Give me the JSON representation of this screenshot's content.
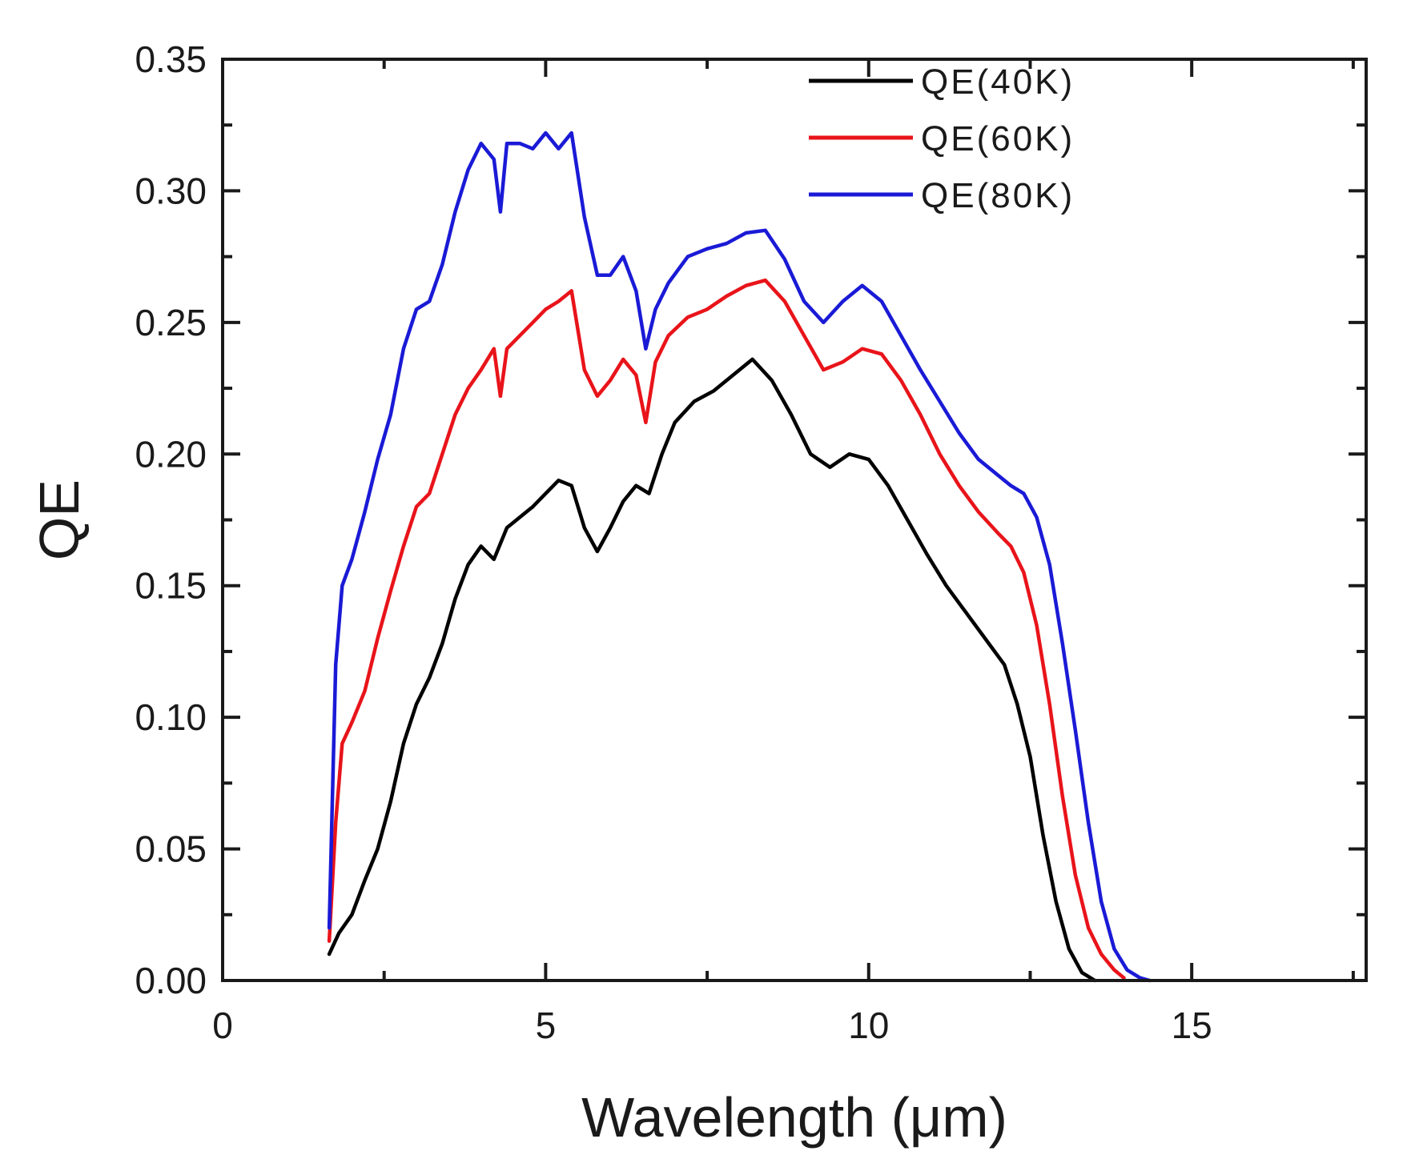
{
  "chart_data": {
    "type": "line",
    "title": "",
    "xlabel": "Wavelength (μm)",
    "ylabel": "QE",
    "xlim": [
      0,
      17.7
    ],
    "ylim": [
      0,
      0.35
    ],
    "xticks": [
      0,
      5,
      10,
      15
    ],
    "xtick_labels": [
      "0",
      "5",
      "10",
      "15"
    ],
    "yticks": [
      0,
      0.05,
      0.1,
      0.15,
      0.2,
      0.25,
      0.3,
      0.35
    ],
    "ytick_labels": [
      "0.00",
      "0.05",
      "0.10",
      "0.15",
      "0.20",
      "0.25",
      "0.30",
      "0.35"
    ],
    "grid": false,
    "legend_position": "top-right",
    "series": [
      {
        "name": "QE(40K)",
        "color": "#000000",
        "x": [
          1.65,
          1.8,
          2.0,
          2.2,
          2.4,
          2.6,
          2.8,
          3.0,
          3.2,
          3.4,
          3.6,
          3.8,
          4.0,
          4.2,
          4.4,
          4.6,
          4.8,
          5.0,
          5.2,
          5.4,
          5.6,
          5.8,
          6.0,
          6.2,
          6.4,
          6.6,
          6.8,
          7.0,
          7.3,
          7.6,
          7.9,
          8.2,
          8.5,
          8.8,
          9.1,
          9.4,
          9.7,
          10.0,
          10.3,
          10.6,
          10.9,
          11.2,
          11.5,
          11.8,
          12.1,
          12.3,
          12.5,
          12.7,
          12.9,
          13.1,
          13.3,
          13.5
        ],
        "values": [
          0.01,
          0.018,
          0.025,
          0.038,
          0.05,
          0.068,
          0.09,
          0.105,
          0.115,
          0.128,
          0.145,
          0.158,
          0.165,
          0.16,
          0.172,
          0.176,
          0.18,
          0.185,
          0.19,
          0.188,
          0.172,
          0.163,
          0.172,
          0.182,
          0.188,
          0.185,
          0.2,
          0.212,
          0.22,
          0.224,
          0.23,
          0.236,
          0.228,
          0.215,
          0.2,
          0.195,
          0.2,
          0.198,
          0.188,
          0.175,
          0.162,
          0.15,
          0.14,
          0.13,
          0.12,
          0.105,
          0.085,
          0.055,
          0.03,
          0.012,
          0.003,
          0.0
        ]
      },
      {
        "name": "QE(60K)",
        "color": "#e8141a",
        "x": [
          1.65,
          1.75,
          1.85,
          2.0,
          2.2,
          2.4,
          2.6,
          2.8,
          3.0,
          3.2,
          3.4,
          3.6,
          3.8,
          4.0,
          4.2,
          4.3,
          4.4,
          4.6,
          4.8,
          5.0,
          5.2,
          5.4,
          5.6,
          5.8,
          6.0,
          6.2,
          6.4,
          6.55,
          6.7,
          6.9,
          7.2,
          7.5,
          7.8,
          8.1,
          8.4,
          8.7,
          9.0,
          9.3,
          9.6,
          9.9,
          10.2,
          10.5,
          10.8,
          11.1,
          11.4,
          11.7,
          12.0,
          12.2,
          12.4,
          12.6,
          12.8,
          13.0,
          13.2,
          13.4,
          13.6,
          13.8,
          13.95
        ],
        "values": [
          0.015,
          0.06,
          0.09,
          0.098,
          0.11,
          0.13,
          0.148,
          0.165,
          0.18,
          0.185,
          0.2,
          0.215,
          0.225,
          0.232,
          0.24,
          0.222,
          0.24,
          0.245,
          0.25,
          0.255,
          0.258,
          0.262,
          0.232,
          0.222,
          0.228,
          0.236,
          0.23,
          0.212,
          0.235,
          0.245,
          0.252,
          0.255,
          0.26,
          0.264,
          0.266,
          0.258,
          0.245,
          0.232,
          0.235,
          0.24,
          0.238,
          0.228,
          0.215,
          0.2,
          0.188,
          0.178,
          0.17,
          0.165,
          0.155,
          0.135,
          0.105,
          0.07,
          0.04,
          0.02,
          0.01,
          0.004,
          0.001
        ]
      },
      {
        "name": "QE(80K)",
        "color": "#1a1ad6",
        "x": [
          1.65,
          1.75,
          1.85,
          2.0,
          2.2,
          2.4,
          2.6,
          2.8,
          3.0,
          3.2,
          3.4,
          3.6,
          3.8,
          4.0,
          4.2,
          4.3,
          4.4,
          4.6,
          4.8,
          5.0,
          5.2,
          5.4,
          5.6,
          5.8,
          6.0,
          6.2,
          6.4,
          6.55,
          6.7,
          6.9,
          7.2,
          7.5,
          7.8,
          8.1,
          8.4,
          8.7,
          9.0,
          9.3,
          9.6,
          9.9,
          10.2,
          10.5,
          10.8,
          11.1,
          11.4,
          11.7,
          12.0,
          12.2,
          12.4,
          12.6,
          12.8,
          13.0,
          13.2,
          13.4,
          13.6,
          13.8,
          14.0,
          14.2,
          14.35
        ],
        "values": [
          0.02,
          0.12,
          0.15,
          0.16,
          0.178,
          0.198,
          0.215,
          0.24,
          0.255,
          0.258,
          0.272,
          0.292,
          0.308,
          0.318,
          0.312,
          0.292,
          0.318,
          0.318,
          0.316,
          0.322,
          0.316,
          0.322,
          0.29,
          0.268,
          0.268,
          0.275,
          0.262,
          0.24,
          0.255,
          0.265,
          0.275,
          0.278,
          0.28,
          0.284,
          0.285,
          0.274,
          0.258,
          0.25,
          0.258,
          0.264,
          0.258,
          0.245,
          0.232,
          0.22,
          0.208,
          0.198,
          0.192,
          0.188,
          0.185,
          0.176,
          0.158,
          0.128,
          0.095,
          0.06,
          0.03,
          0.012,
          0.004,
          0.001,
          0.0
        ]
      }
    ]
  }
}
